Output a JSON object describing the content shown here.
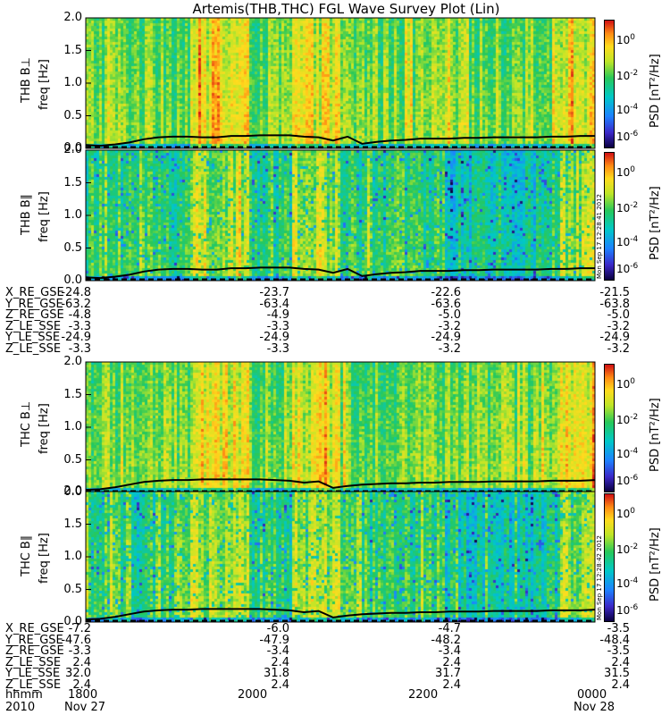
{
  "chart_data": {
    "type": "heatmap",
    "title": "Artemis(THB,THC) FGL Wave Survey Plot (Lin)",
    "panels": [
      {
        "probe": "THB",
        "component": "B⊥",
        "ylabel": "freq [Hz]",
        "ylim": [
          0,
          2.0
        ],
        "yticks": [
          "0.0",
          "0.5",
          "1.0",
          "1.5",
          "2.0"
        ],
        "colorbar_label": "PSD [nT²/Hz]",
        "colorbar_ticks": [
          "10^0",
          "10^-2",
          "10^-4",
          "10^-6"
        ],
        "line_y": [
          0.05,
          0.04,
          0.06,
          0.09,
          0.14,
          0.17,
          0.18,
          0.18,
          0.17,
          0.17,
          0.19,
          0.19,
          0.2,
          0.2,
          0.2,
          0.18,
          0.17,
          0.12,
          0.18,
          0.07,
          0.1,
          0.12,
          0.13,
          0.15,
          0.15,
          0.15,
          0.16,
          0.16,
          0.17,
          0.17,
          0.17,
          0.17,
          0.18,
          0.18,
          0.19,
          0.19
        ]
      },
      {
        "probe": "THB",
        "component": "B∥",
        "ylabel": "freq [Hz]",
        "ylim": [
          0,
          2.0
        ],
        "yticks": [
          "0.0",
          "0.5",
          "1.0",
          "1.5",
          "2.0"
        ],
        "colorbar_label": "PSD [nT²/Hz]",
        "colorbar_ticks": [
          "10^0",
          "10^-2",
          "10^-4",
          "10^-6"
        ],
        "stamp": "Mon Sep 17 12:28:41 2012",
        "line_y": [
          0.05,
          0.04,
          0.06,
          0.09,
          0.14,
          0.17,
          0.18,
          0.18,
          0.17,
          0.17,
          0.19,
          0.19,
          0.2,
          0.2,
          0.2,
          0.18,
          0.17,
          0.12,
          0.18,
          0.07,
          0.1,
          0.12,
          0.13,
          0.15,
          0.15,
          0.15,
          0.16,
          0.16,
          0.17,
          0.17,
          0.17,
          0.17,
          0.18,
          0.18,
          0.19,
          0.19
        ]
      },
      {
        "probe": "THC",
        "component": "B⊥",
        "ylabel": "freq [Hz]",
        "ylim": [
          0,
          2.0
        ],
        "yticks": [
          "0.0",
          "0.5",
          "1.0",
          "1.5",
          "2.0"
        ],
        "colorbar_label": "PSD [nT²/Hz]",
        "colorbar_ticks": [
          "10^0",
          "10^-2",
          "10^-4",
          "10^-6"
        ],
        "line_y": [
          0.04,
          0.05,
          0.08,
          0.12,
          0.16,
          0.18,
          0.19,
          0.19,
          0.2,
          0.2,
          0.2,
          0.2,
          0.2,
          0.19,
          0.18,
          0.15,
          0.17,
          0.07,
          0.1,
          0.12,
          0.13,
          0.14,
          0.14,
          0.15,
          0.15,
          0.16,
          0.16,
          0.16,
          0.17,
          0.17,
          0.17,
          0.17,
          0.18,
          0.18,
          0.18,
          0.19
        ]
      },
      {
        "probe": "THC",
        "component": "B∥",
        "ylabel": "freq [Hz]",
        "ylim": [
          0,
          2.0
        ],
        "yticks": [
          "0.0",
          "0.5",
          "1.0",
          "1.5",
          "2.0"
        ],
        "colorbar_label": "PSD [nT²/Hz]",
        "colorbar_ticks": [
          "10^0",
          "10^-2",
          "10^-4",
          "10^-6"
        ],
        "stamp": "Mon Sep 17 12:28:42 2012",
        "line_y": [
          0.04,
          0.05,
          0.08,
          0.12,
          0.16,
          0.18,
          0.19,
          0.19,
          0.2,
          0.2,
          0.2,
          0.2,
          0.2,
          0.19,
          0.18,
          0.15,
          0.17,
          0.07,
          0.1,
          0.12,
          0.13,
          0.14,
          0.14,
          0.15,
          0.15,
          0.16,
          0.16,
          0.16,
          0.17,
          0.17,
          0.17,
          0.17,
          0.18,
          0.18,
          0.18,
          0.19
        ]
      }
    ],
    "ephemeris_thb": [
      {
        "label": "X_RE_GSE",
        "values": [
          "-24.8",
          "-23.7",
          "-22.6",
          "-21.5"
        ]
      },
      {
        "label": "Y_RE_GSE",
        "values": [
          "-63.2",
          "-63.4",
          "-63.6",
          "-63.8"
        ]
      },
      {
        "label": "Z_RE_GSE",
        "values": [
          "-4.8",
          "-4.9",
          "-5.0",
          "-5.0"
        ]
      },
      {
        "label": "Z_LE_SSE",
        "values": [
          "-3.3",
          "-3.3",
          "-3.2",
          "-3.2"
        ]
      },
      {
        "label": "Y_LE_SSE",
        "values": [
          "-24.9",
          "-24.9",
          "-24.9",
          "-24.9"
        ]
      },
      {
        "label": "Z_LE_SSE",
        "values": [
          "-3.3",
          "-3.3",
          "-3.2",
          "-3.2"
        ]
      }
    ],
    "ephemeris_thc": [
      {
        "label": "X_RE_GSE",
        "values": [
          "-7.2",
          "-6.0",
          "-4.7",
          "-3.5"
        ]
      },
      {
        "label": "Y_RE_GSE",
        "values": [
          "-47.6",
          "-47.9",
          "-48.2",
          "-48.4"
        ]
      },
      {
        "label": "Z_RE_GSE",
        "values": [
          "-3.3",
          "-3.4",
          "-3.4",
          "-3.5"
        ]
      },
      {
        "label": "Z_LE_SSE",
        "values": [
          "2.4",
          "2.4",
          "2.4",
          "2.4"
        ]
      },
      {
        "label": "Y_LE_SSE",
        "values": [
          "32.0",
          "31.8",
          "31.7",
          "31.5"
        ]
      },
      {
        "label": "Z_LE_SSE",
        "values": [
          "2.4",
          "2.4",
          "2.4",
          "2.4"
        ]
      }
    ],
    "time_axis": {
      "label_hhmm": "hhmm",
      "label_year": "2010",
      "ticks": [
        "1800",
        "2000",
        "2200",
        "0000"
      ],
      "dates": [
        "Nov 27",
        "",
        "",
        "Nov 28"
      ]
    }
  }
}
